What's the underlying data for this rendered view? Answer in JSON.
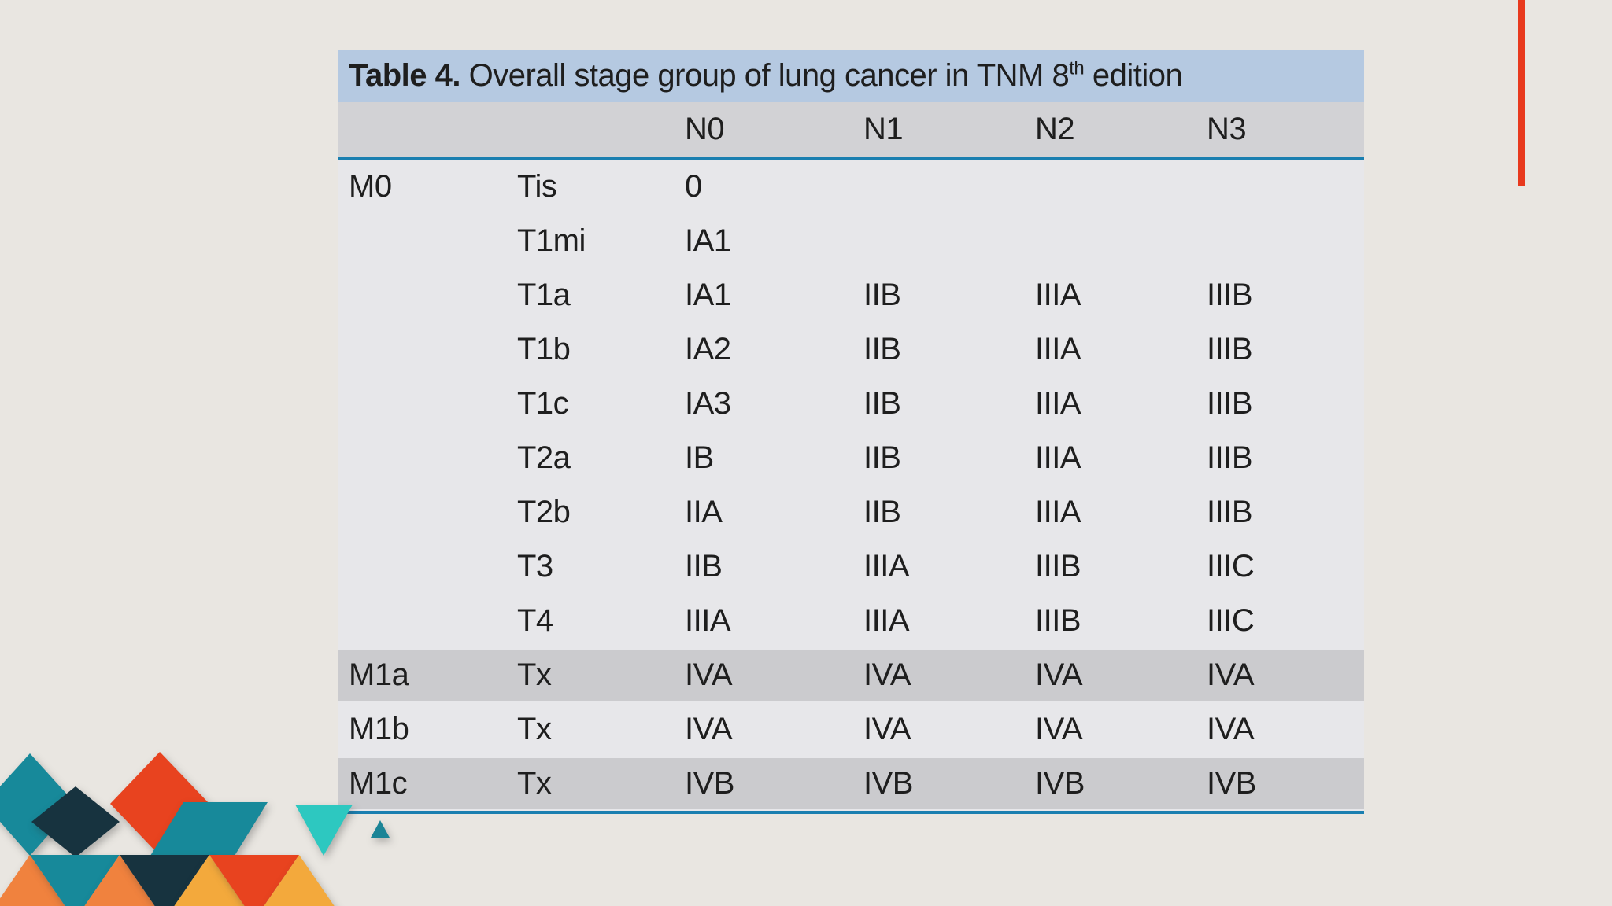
{
  "theme": {
    "page_bg": "#e9e6e1",
    "title_bar_blue": "#b5c9e1",
    "header_gray": "#d2d2d5",
    "row_light": "#e7e7ea",
    "row_dark": "#cbcbce",
    "rule_blue": "#1a7fb0",
    "text": "#1e1e1e",
    "accent_red": "#e8391d"
  },
  "table": {
    "title_bold": "Table 4.",
    "title_rest": " Overall stage group of lung cancer in TNM 8",
    "title_sup": "th",
    "title_end": " edition",
    "header_columns": [
      "",
      "",
      "N0",
      "N1",
      "N2",
      "N3"
    ],
    "rows": [
      {
        "cells": [
          "M0",
          "Tis",
          "0",
          "",
          "",
          ""
        ],
        "shaded": false
      },
      {
        "cells": [
          "",
          "T1mi",
          "IA1",
          "",
          "",
          ""
        ],
        "shaded": false
      },
      {
        "cells": [
          "",
          "T1a",
          "IA1",
          "IIB",
          "IIIA",
          "IIIB"
        ],
        "shaded": false
      },
      {
        "cells": [
          "",
          "T1b",
          "IA2",
          "IIB",
          "IIIA",
          "IIIB"
        ],
        "shaded": false
      },
      {
        "cells": [
          "",
          "T1c",
          "IA3",
          "IIB",
          "IIIA",
          "IIIB"
        ],
        "shaded": false
      },
      {
        "cells": [
          "",
          "T2a",
          "IB",
          "IIB",
          "IIIA",
          "IIIB"
        ],
        "shaded": false
      },
      {
        "cells": [
          "",
          "T2b",
          "IIA",
          "IIB",
          "IIIA",
          "IIIB"
        ],
        "shaded": false
      },
      {
        "cells": [
          "",
          "T3",
          "IIB",
          "IIIA",
          "IIIB",
          "IIIC"
        ],
        "shaded": false
      },
      {
        "cells": [
          "",
          "T4",
          "IIIA",
          "IIIA",
          "IIIB",
          "IIIC"
        ],
        "shaded": false
      },
      {
        "cells": [
          "M1a",
          "Tx",
          "IVA",
          "IVA",
          "IVA",
          "IVA"
        ],
        "shaded": true
      },
      {
        "cells": [
          "M1b",
          "Tx",
          "IVA",
          "IVA",
          "IVA",
          "IVA"
        ],
        "shaded": false
      },
      {
        "cells": [
          "M1c",
          "Tx",
          "IVB",
          "IVB",
          "IVB",
          "IVB"
        ],
        "shaded": true
      }
    ]
  },
  "decorations": {
    "palette": {
      "teal": "#17899a",
      "navy": "#17333f",
      "red": "#e8431f",
      "orange": "#f0823e",
      "amber": "#f3a93c",
      "turquoise": "#2dc8c0",
      "teal_small": "#1b8496"
    }
  }
}
